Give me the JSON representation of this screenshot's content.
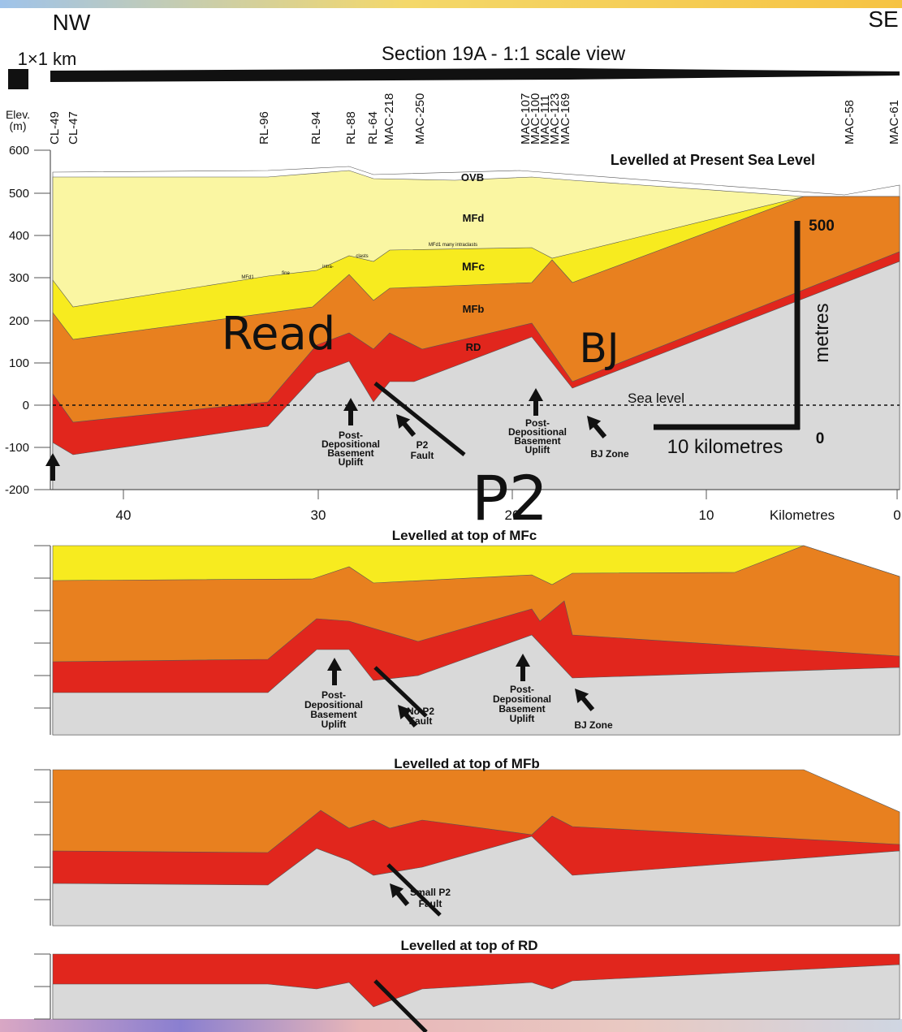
{
  "header": {
    "left": "NW",
    "right": "SE",
    "scale": "1×1 km",
    "title": "Section 19A - 1:1 scale view"
  },
  "axis": {
    "label": [
      "Elev.",
      "(m)"
    ],
    "elevation_labels": [
      "600",
      "500",
      "400",
      "300",
      "200",
      "100",
      "0",
      "-100",
      "-200"
    ],
    "km_labels": [
      "40",
      "30",
      "20",
      "10",
      "Kilometres",
      "0"
    ]
  },
  "wells": [
    "CL-49",
    "CL-47",
    "RL-96",
    "RL-94",
    "RL-88",
    "RL-64",
    "MAC-218",
    "MAC-250",
    "MAC-107",
    "MAC-100",
    "MAC-111",
    "MAC-123",
    "MAC-169",
    "MAC-58",
    "MAC-61"
  ],
  "panels": [
    {
      "title": "Levelled at Present Sea Level"
    },
    {
      "title": "Levelled at top of MFc"
    },
    {
      "title": "Levelled at top of MFb"
    },
    {
      "title": "Levelled at top of RD"
    }
  ],
  "units": {
    "ovb": "OVB",
    "mfd": "MFd",
    "mfd1": "MFd1 many intraclasts",
    "mfc": "MFc",
    "mfb": "MFb",
    "rd": "RD"
  },
  "small_notes": [
    "MFd1",
    "fine",
    "intra-",
    "clasts"
  ],
  "scale_bar": {
    "top": "500",
    "unit": "metres",
    "zero": "0",
    "horizontal": "10  kilometres"
  },
  "sea_level": "Sea level",
  "annotations": {
    "uplift": [
      "Post-",
      "Depositional",
      "Basement",
      "Uplift"
    ],
    "p2_fault": [
      "P2",
      "Fault"
    ],
    "bj_zone": "BJ Zone",
    "no_p2_fault": [
      "No P2",
      "Fault"
    ],
    "small_p2_fault": [
      "Small P2",
      "Fault"
    ]
  },
  "overlay": {
    "read": "Read",
    "bj": "BJ",
    "p2": "P2"
  }
}
